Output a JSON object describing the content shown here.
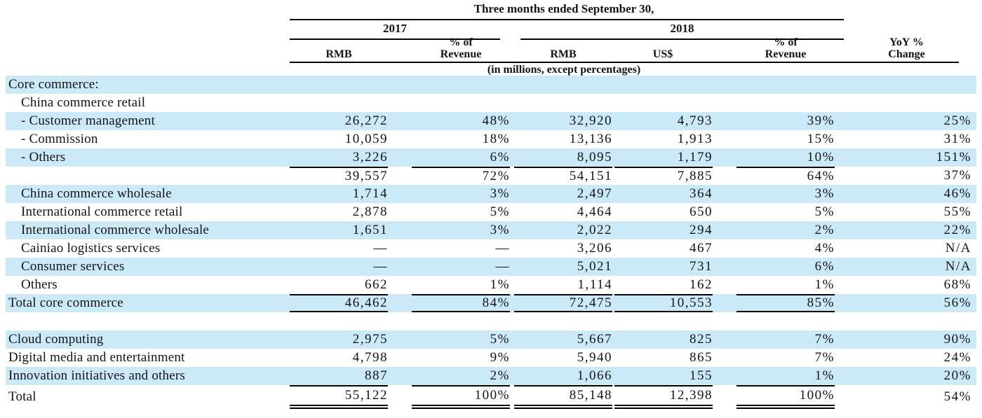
{
  "header": {
    "title": "Three months ended September 30,",
    "periods": [
      "2017",
      "2018"
    ],
    "columns": [
      "RMB",
      "% of\nRevenue",
      "RMB",
      "US$",
      "% of\nRevenue",
      "YoY %\nChange"
    ],
    "subnote": "(in millions, except percentages)"
  },
  "table": {
    "rows": [
      {
        "label": "Core commerce:",
        "indent": 0,
        "bg": "blue",
        "rule_top": false,
        "rule_bottom": null,
        "values": [
          "",
          "",
          "",
          "",
          "",
          ""
        ]
      },
      {
        "label": "China commerce retail",
        "indent": 1,
        "bg": "white",
        "rule_top": false,
        "rule_bottom": null,
        "values": [
          "",
          "",
          "",
          "",
          "",
          ""
        ]
      },
      {
        "label": "- Customer management",
        "indent": 1,
        "bg": "blue",
        "rule_top": false,
        "rule_bottom": null,
        "values": [
          "26,272",
          "48%",
          "32,920",
          "4,793",
          "39%",
          "25%"
        ]
      },
      {
        "label": "- Commission",
        "indent": 1,
        "bg": "white",
        "rule_top": false,
        "rule_bottom": null,
        "values": [
          "10,059",
          "18%",
          "13,136",
          "1,913",
          "15%",
          "31%"
        ]
      },
      {
        "label": "- Others",
        "indent": 1,
        "bg": "blue",
        "rule_top": false,
        "rule_bottom": null,
        "values": [
          "3,226",
          "6%",
          "8,095",
          "1,179",
          "10%",
          "151%"
        ]
      },
      {
        "label": "",
        "indent": 1,
        "bg": "white",
        "rule_top": true,
        "rule_bottom": null,
        "values": [
          "39,557",
          "72%",
          "54,151",
          "7,885",
          "64%",
          "37%"
        ]
      },
      {
        "label": "China commerce wholesale",
        "indent": 1,
        "bg": "blue",
        "rule_top": false,
        "rule_bottom": null,
        "values": [
          "1,714",
          "3%",
          "2,497",
          "364",
          "3%",
          "46%"
        ]
      },
      {
        "label": "International commerce retail",
        "indent": 1,
        "bg": "white",
        "rule_top": false,
        "rule_bottom": null,
        "values": [
          "2,878",
          "5%",
          "4,464",
          "650",
          "5%",
          "55%"
        ]
      },
      {
        "label": "International commerce wholesale",
        "indent": 1,
        "bg": "blue",
        "rule_top": false,
        "rule_bottom": null,
        "values": [
          "1,651",
          "3%",
          "2,022",
          "294",
          "2%",
          "22%"
        ]
      },
      {
        "label": "Cainiao logistics services",
        "indent": 1,
        "bg": "white",
        "rule_top": false,
        "rule_bottom": null,
        "values": [
          "—",
          "—",
          "3,206",
          "467",
          "4%",
          "N/A"
        ]
      },
      {
        "label": "Consumer services",
        "indent": 1,
        "bg": "blue",
        "rule_top": false,
        "rule_bottom": null,
        "values": [
          "—",
          "—",
          "5,021",
          "731",
          "6%",
          "N/A"
        ]
      },
      {
        "label": "Others",
        "indent": 1,
        "bg": "white",
        "rule_top": false,
        "rule_bottom": null,
        "values": [
          "662",
          "1%",
          "1,114",
          "162",
          "1%",
          "68%"
        ]
      },
      {
        "label": "Total core commerce",
        "indent": 0,
        "bg": "blue",
        "rule_top": true,
        "rule_bottom": "single",
        "values": [
          "46,462",
          "84%",
          "72,475",
          "10,553",
          "85%",
          "56%"
        ]
      },
      {
        "label": "",
        "indent": 0,
        "bg": "white",
        "rule_top": false,
        "rule_bottom": null,
        "values": [
          "",
          "",
          "",
          "",
          "",
          ""
        ]
      },
      {
        "label": "Cloud computing",
        "indent": 0,
        "bg": "blue",
        "rule_top": false,
        "rule_bottom": null,
        "values": [
          "2,975",
          "5%",
          "5,667",
          "825",
          "7%",
          "90%"
        ]
      },
      {
        "label": "Digital media and entertainment",
        "indent": 0,
        "bg": "white",
        "rule_top": false,
        "rule_bottom": null,
        "values": [
          "4,798",
          "9%",
          "5,940",
          "865",
          "7%",
          "24%"
        ]
      },
      {
        "label": "Innovation initiatives and others",
        "indent": 0,
        "bg": "blue",
        "rule_top": false,
        "rule_bottom": null,
        "values": [
          "887",
          "2%",
          "1,066",
          "155",
          "1%",
          "20%"
        ]
      },
      {
        "label": "Total",
        "indent": 0,
        "bg": "white",
        "rule_top": true,
        "rule_bottom": "double",
        "values": [
          "55,122",
          "100%",
          "85,148",
          "12,398",
          "100%",
          "54%"
        ]
      }
    ]
  },
  "colors": {
    "stripe_blue": "#cce9f8",
    "rule_black": "#000000",
    "text": "#141414"
  }
}
